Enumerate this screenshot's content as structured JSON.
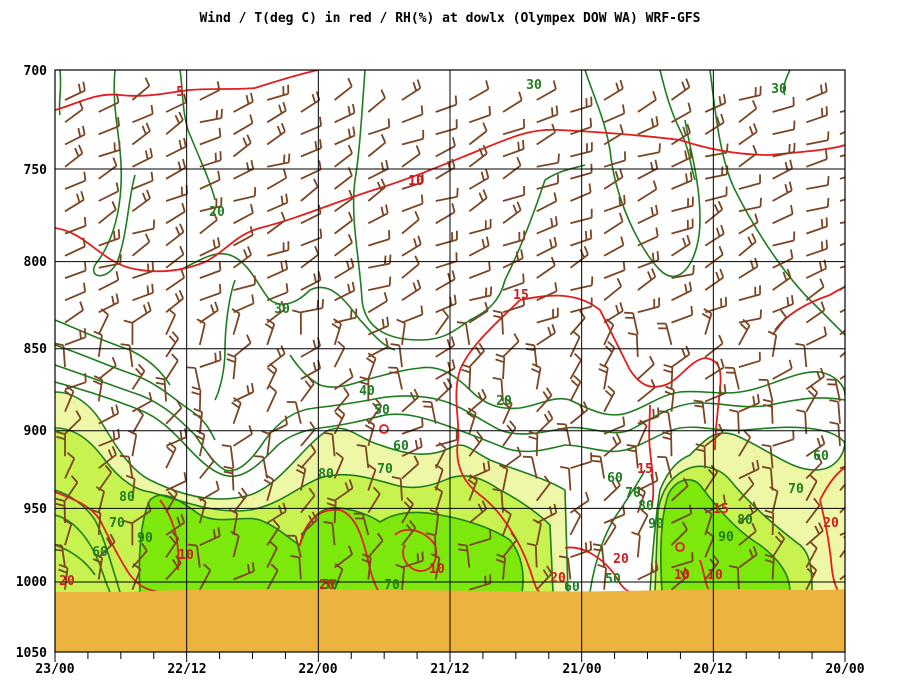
{
  "chart_data": {
    "type": "time-height cross section",
    "title": "Wind / T(deg C) in red / RH(%) at dowlx (Olympex DOW WA)  WRF-GFS",
    "y_ticks": [
      "700",
      "750",
      "800",
      "850",
      "900",
      "950",
      "1000",
      "1050"
    ],
    "y_axis": {
      "quantity": "pressure (hPa)",
      "range": [
        700,
        1050
      ],
      "direction": "increasing downward",
      "scale": "log"
    },
    "x_ticks": [
      "23/00",
      "22/12",
      "22/00",
      "21/12",
      "21/00",
      "20/12",
      "20/00"
    ],
    "x_axis": {
      "quantity": "valid time (day/hour UTC)",
      "direction": "time decreases to the right"
    },
    "x_minor_ticks_hours": 3,
    "grid": true,
    "surface_pressure_hPa": 1005,
    "rh_shading": [
      {
        "threshold": 70,
        "color": "#eef7a6"
      },
      {
        "threshold": 80,
        "color": "#c8f250"
      },
      {
        "threshold": 90,
        "color": "#7ce80c"
      }
    ],
    "rh_contour_color": "#1e7d1e",
    "temperature_contour_color": "#e41d1d",
    "wind_barb_color": "#7b4523",
    "ground_color": "#ecb43e",
    "rh_labels": [
      "30",
      "30",
      "20",
      "30",
      "40",
      "50",
      "60",
      "80",
      "70",
      "20",
      "60",
      "70",
      "80",
      "90",
      "80",
      "70",
      "60",
      "90",
      "60",
      "50",
      "70",
      "80",
      "90",
      "70",
      "60",
      "50"
    ],
    "temperature_labels": [
      "5",
      "10",
      "15",
      "15",
      "15",
      "10",
      "10",
      "10",
      "10",
      "20",
      "20",
      "20",
      "20",
      "20"
    ]
  }
}
